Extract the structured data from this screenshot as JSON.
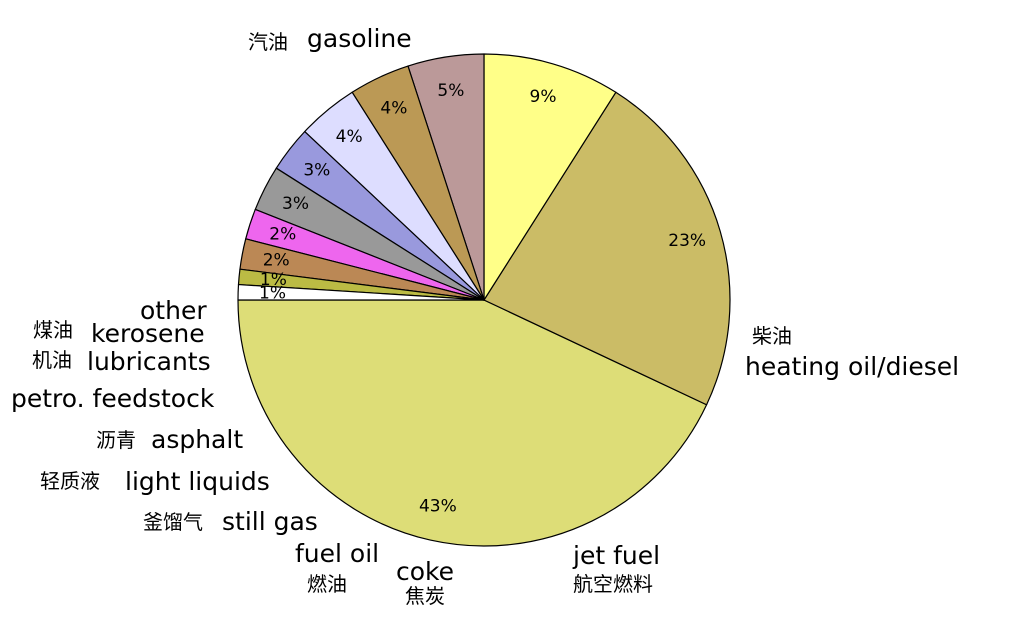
{
  "chart_data": {
    "type": "pie",
    "title": "",
    "start_angle_deg": 180,
    "direction": "counterclockwise",
    "slices": [
      {
        "name": "gasoline",
        "name_zh": "汽油",
        "value": 43,
        "pct_label": "43%",
        "color": "#dddd77"
      },
      {
        "name": "heating oil/diesel",
        "name_zh": "柴油",
        "value": 23,
        "pct_label": "23%",
        "color": "#cbbc66"
      },
      {
        "name": "jet fuel",
        "name_zh": "航空燃料",
        "value": 9,
        "pct_label": "9%",
        "color": "#ffff88"
      },
      {
        "name": "coke",
        "name_zh": "焦炭",
        "value": 5,
        "pct_label": "5%",
        "color": "#bb9999"
      },
      {
        "name": "fuel oil",
        "name_zh": "燃油",
        "value": 4,
        "pct_label": "4%",
        "color": "#bb9955"
      },
      {
        "name": "still gas",
        "name_zh": "釜馏气",
        "value": 4,
        "pct_label": "4%",
        "color": "#ddddff"
      },
      {
        "name": "light liquids",
        "name_zh": "轻质液",
        "value": 3,
        "pct_label": "3%",
        "color": "#9999dd"
      },
      {
        "name": "asphalt",
        "name_zh": "沥青",
        "value": 3,
        "pct_label": "3%",
        "color": "#999999"
      },
      {
        "name": "petro. feedstock",
        "name_zh": "",
        "value": 2,
        "pct_label": "2%",
        "color": "#ee66ee"
      },
      {
        "name": "lubricants",
        "name_zh": "机油",
        "value": 2,
        "pct_label": "2%",
        "color": "#bb8855"
      },
      {
        "name": "kerosene",
        "name_zh": "煤油",
        "value": 1,
        "pct_label": "1%",
        "color": "#bbbb44"
      },
      {
        "name": "other",
        "name_zh": "",
        "value": 1,
        "pct_label": "1%",
        "color": "#ffffff"
      }
    ]
  }
}
